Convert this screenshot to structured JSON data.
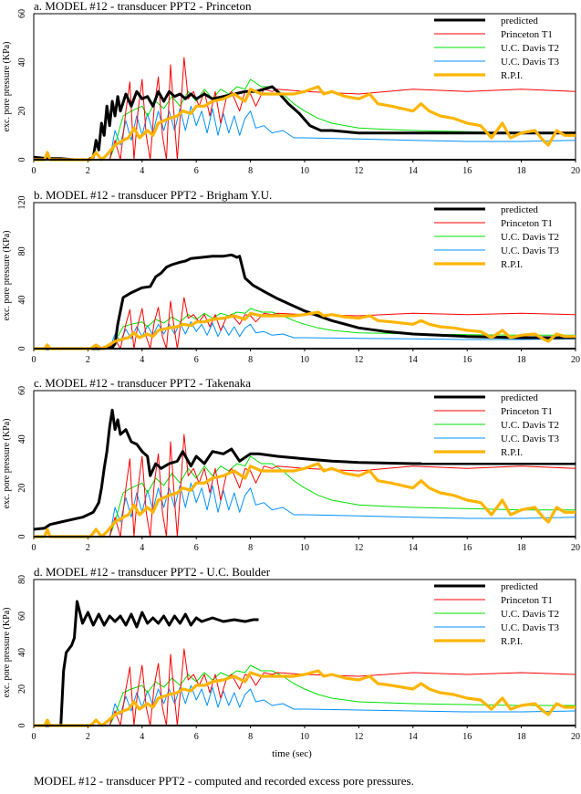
{
  "caption": "MODEL #12 - transducer PPT2 - computed and recorded excess pore pressures.",
  "colors": {
    "predicted": "#000000",
    "Princeton T1": "#ff0000",
    "U.C. Davis T2": "#00e000",
    "U.C. Davis T3": "#0090ff",
    "R.P.I.": "#ffb400"
  },
  "chart_data": [
    {
      "type": "line",
      "title": "a. MODEL #12 - transducer PPT2 - Princeton",
      "xlabel": "",
      "ylabel": "exc. pore pressure (KPa)",
      "xlim": [
        0,
        20
      ],
      "ylim": [
        0,
        60
      ],
      "xticks": [
        0,
        2,
        4,
        6,
        8,
        10,
        12,
        14,
        16,
        18,
        20
      ],
      "yticks": [
        0,
        20,
        40,
        60
      ],
      "legend": "top-right",
      "predicted": [
        [
          0,
          1
        ],
        [
          0.5,
          0.5
        ],
        [
          1,
          0.5
        ],
        [
          1.5,
          0
        ],
        [
          2.0,
          0
        ],
        [
          2.2,
          1
        ],
        [
          2.3,
          8
        ],
        [
          2.4,
          4
        ],
        [
          2.5,
          15
        ],
        [
          2.6,
          10
        ],
        [
          2.7,
          22
        ],
        [
          2.8,
          14
        ],
        [
          2.9,
          24
        ],
        [
          3.0,
          18
        ],
        [
          3.1,
          26
        ],
        [
          3.2,
          20
        ],
        [
          3.4,
          27
        ],
        [
          3.6,
          22
        ],
        [
          3.8,
          28
        ],
        [
          4.0,
          25
        ],
        [
          4.2,
          26
        ],
        [
          4.4,
          22
        ],
        [
          4.6,
          28
        ],
        [
          4.8,
          24
        ],
        [
          5.0,
          28
        ],
        [
          5.2,
          26
        ],
        [
          5.4,
          27
        ],
        [
          5.6,
          25
        ],
        [
          5.8,
          27
        ],
        [
          6.0,
          25
        ],
        [
          6.3,
          27
        ],
        [
          6.6,
          25
        ],
        [
          7.0,
          26
        ],
        [
          7.4,
          27
        ],
        [
          7.8,
          28
        ],
        [
          8.2,
          28
        ],
        [
          8.8,
          30
        ],
        [
          9.0,
          28
        ],
        [
          9.4,
          23
        ],
        [
          9.8,
          19
        ],
        [
          10.2,
          14
        ],
        [
          10.6,
          12
        ],
        [
          11,
          12
        ],
        [
          12,
          11
        ],
        [
          14,
          11
        ],
        [
          16,
          11
        ],
        [
          18,
          11
        ],
        [
          20,
          11
        ]
      ]
    },
    {
      "type": "line",
      "title": "b. MODEL #12 - transducer PPT2 - Brigham Y.U.",
      "xlabel": "",
      "ylabel": "exc. pore pressure (KPa)",
      "xlim": [
        0,
        20
      ],
      "ylim": [
        0,
        120
      ],
      "xticks": [
        0,
        2,
        4,
        6,
        8,
        10,
        12,
        14,
        16,
        18,
        20
      ],
      "yticks": [
        0,
        40,
        80,
        120
      ],
      "legend": "top-right",
      "predicted": [
        [
          0,
          0
        ],
        [
          2.5,
          0
        ],
        [
          2.9,
          1
        ],
        [
          3.0,
          4
        ],
        [
          3.1,
          20
        ],
        [
          3.3,
          42
        ],
        [
          3.6,
          46
        ],
        [
          4.0,
          50
        ],
        [
          4.3,
          51
        ],
        [
          4.4,
          55
        ],
        [
          4.5,
          59
        ],
        [
          4.7,
          62
        ],
        [
          4.9,
          67
        ],
        [
          5.1,
          69
        ],
        [
          5.4,
          71
        ],
        [
          5.6,
          72
        ],
        [
          5.8,
          74
        ],
        [
          6.2,
          75
        ],
        [
          6.6,
          76
        ],
        [
          7.0,
          76
        ],
        [
          7.3,
          77
        ],
        [
          7.5,
          75
        ],
        [
          7.6,
          76
        ],
        [
          7.8,
          58
        ],
        [
          8.1,
          52
        ],
        [
          8.5,
          47
        ],
        [
          9.0,
          41
        ],
        [
          9.5,
          36
        ],
        [
          10,
          31
        ],
        [
          11,
          23
        ],
        [
          12,
          17
        ],
        [
          13,
          14
        ],
        [
          14,
          12
        ],
        [
          16,
          10
        ],
        [
          18,
          9
        ],
        [
          20,
          9
        ]
      ]
    },
    {
      "type": "line",
      "title": "c. MODEL #12 - transducer PPT2 - Takenaka",
      "xlabel": "",
      "ylabel": "exc. pore pressure (KPa)",
      "xlim": [
        0,
        20
      ],
      "ylim": [
        0,
        60
      ],
      "xticks": [
        0,
        2,
        4,
        6,
        8,
        10,
        12,
        14,
        16,
        18,
        20
      ],
      "yticks": [
        0,
        20,
        40,
        60
      ],
      "legend": "top-right",
      "predicted": [
        [
          0,
          3
        ],
        [
          0.4,
          3.5
        ],
        [
          0.6,
          5
        ],
        [
          1.0,
          6
        ],
        [
          1.4,
          7
        ],
        [
          1.8,
          8
        ],
        [
          2.0,
          9
        ],
        [
          2.2,
          10
        ],
        [
          2.4,
          14
        ],
        [
          2.5,
          20
        ],
        [
          2.6,
          28
        ],
        [
          2.7,
          35
        ],
        [
          2.8,
          45
        ],
        [
          2.9,
          52
        ],
        [
          3.0,
          44
        ],
        [
          3.1,
          48
        ],
        [
          3.2,
          42
        ],
        [
          3.4,
          44
        ],
        [
          3.6,
          39
        ],
        [
          3.8,
          38
        ],
        [
          4.0,
          35
        ],
        [
          4.2,
          33
        ],
        [
          4.3,
          25
        ],
        [
          4.5,
          30
        ],
        [
          4.7,
          28
        ],
        [
          5.0,
          30
        ],
        [
          5.3,
          31
        ],
        [
          5.5,
          35
        ],
        [
          5.8,
          29
        ],
        [
          6.0,
          33
        ],
        [
          6.3,
          30
        ],
        [
          6.6,
          35
        ],
        [
          7.0,
          34
        ],
        [
          7.3,
          36
        ],
        [
          7.6,
          31
        ],
        [
          8.0,
          34
        ],
        [
          8.3,
          34
        ],
        [
          9.0,
          33
        ],
        [
          10,
          32
        ],
        [
          11,
          31
        ],
        [
          12,
          30.5
        ],
        [
          14,
          30
        ],
        [
          16,
          30
        ],
        [
          18,
          30
        ],
        [
          20,
          30
        ]
      ]
    },
    {
      "type": "line",
      "title": "d. MODEL #12 - transducer PPT2 - U.C. Boulder",
      "xlabel": "time (sec)",
      "ylabel": "exc. pore pressure (KPa)",
      "xlim": [
        0,
        20
      ],
      "ylim": [
        0,
        80
      ],
      "xticks": [
        0,
        2,
        4,
        6,
        8,
        10,
        12,
        14,
        16,
        18,
        20
      ],
      "yticks": [
        0,
        20,
        40,
        60,
        80
      ],
      "legend": "top-right",
      "predicted": [
        [
          0,
          0
        ],
        [
          0.9,
          0
        ],
        [
          1.0,
          0
        ],
        [
          1.1,
          30
        ],
        [
          1.2,
          40
        ],
        [
          1.4,
          44
        ],
        [
          1.5,
          48
        ],
        [
          1.6,
          68
        ],
        [
          1.8,
          56
        ],
        [
          2.0,
          62
        ],
        [
          2.2,
          55
        ],
        [
          2.4,
          61
        ],
        [
          2.6,
          55
        ],
        [
          2.8,
          60
        ],
        [
          3.0,
          57
        ],
        [
          3.2,
          60
        ],
        [
          3.4,
          55
        ],
        [
          3.6,
          61
        ],
        [
          3.8,
          54
        ],
        [
          4.0,
          62
        ],
        [
          4.2,
          56
        ],
        [
          4.4,
          59
        ],
        [
          4.6,
          56
        ],
        [
          4.8,
          60
        ],
        [
          5.0,
          55
        ],
        [
          5.2,
          60
        ],
        [
          5.4,
          56
        ],
        [
          5.6,
          61
        ],
        [
          5.8,
          55
        ],
        [
          6.0,
          59
        ],
        [
          6.2,
          57
        ],
        [
          6.6,
          59
        ],
        [
          7.0,
          57
        ],
        [
          7.4,
          58
        ],
        [
          7.8,
          57
        ],
        [
          8.1,
          58
        ],
        [
          8.3,
          58
        ]
      ]
    }
  ],
  "recorded": {
    "Princeton T1": [
      [
        0,
        0
      ],
      [
        2.8,
        0
      ],
      [
        3.0,
        8
      ],
      [
        3.2,
        0
      ],
      [
        3.4,
        20
      ],
      [
        3.55,
        32
      ],
      [
        3.7,
        0
      ],
      [
        3.85,
        20
      ],
      [
        4.0,
        33
      ],
      [
        4.15,
        10
      ],
      [
        4.3,
        0
      ],
      [
        4.45,
        22
      ],
      [
        4.6,
        34
      ],
      [
        4.75,
        10
      ],
      [
        4.9,
        0
      ],
      [
        5.05,
        39
      ],
      [
        5.2,
        15
      ],
      [
        5.3,
        0
      ],
      [
        5.45,
        25
      ],
      [
        5.55,
        42
      ],
      [
        5.7,
        25
      ],
      [
        5.9,
        28
      ],
      [
        6.1,
        22
      ],
      [
        6.3,
        28
      ],
      [
        6.5,
        18
      ],
      [
        6.7,
        28
      ],
      [
        6.9,
        15
      ],
      [
        7.1,
        25
      ],
      [
        7.3,
        28
      ],
      [
        7.6,
        20
      ],
      [
        7.8,
        28
      ],
      [
        8.0,
        27
      ],
      [
        8.2,
        22
      ],
      [
        8.5,
        29
      ],
      [
        8.8,
        28
      ],
      [
        9,
        29
      ],
      [
        10,
        28
      ],
      [
        12,
        27
      ],
      [
        14,
        29
      ],
      [
        16,
        28
      ],
      [
        18,
        29
      ],
      [
        20,
        28
      ]
    ],
    "U.C. Davis T2": [
      [
        0,
        0
      ],
      [
        2.8,
        0
      ],
      [
        3.0,
        6
      ],
      [
        3.3,
        18
      ],
      [
        3.6,
        20
      ],
      [
        4.0,
        22
      ],
      [
        4.2,
        18
      ],
      [
        4.5,
        24
      ],
      [
        4.8,
        21
      ],
      [
        5.1,
        26
      ],
      [
        5.4,
        22
      ],
      [
        5.7,
        28
      ],
      [
        6.0,
        24
      ],
      [
        6.3,
        29
      ],
      [
        6.6,
        25
      ],
      [
        6.9,
        29
      ],
      [
        7.2,
        27
      ],
      [
        7.5,
        30
      ],
      [
        7.8,
        29
      ],
      [
        8.0,
        33
      ],
      [
        8.4,
        30
      ],
      [
        8.8,
        30
      ],
      [
        9.2,
        27
      ],
      [
        9.6,
        23
      ],
      [
        10,
        20
      ],
      [
        10.5,
        17
      ],
      [
        11,
        15
      ],
      [
        12,
        13
      ],
      [
        13,
        12.5
      ],
      [
        14,
        12
      ],
      [
        16,
        11.5
      ],
      [
        18,
        11
      ],
      [
        20,
        11
      ]
    ],
    "U.C. Davis T3": [
      [
        0,
        0
      ],
      [
        2.8,
        0
      ],
      [
        3.0,
        12
      ],
      [
        3.2,
        6
      ],
      [
        3.4,
        16
      ],
      [
        3.6,
        8
      ],
      [
        3.8,
        18
      ],
      [
        4.0,
        10
      ],
      [
        4.2,
        19
      ],
      [
        4.4,
        11
      ],
      [
        4.6,
        20
      ],
      [
        4.8,
        12
      ],
      [
        5.0,
        20
      ],
      [
        5.2,
        12
      ],
      [
        5.4,
        21
      ],
      [
        5.6,
        12
      ],
      [
        5.8,
        22
      ],
      [
        6.0,
        14
      ],
      [
        6.2,
        20
      ],
      [
        6.4,
        11
      ],
      [
        6.6,
        21
      ],
      [
        6.8,
        10
      ],
      [
        7.0,
        19
      ],
      [
        7.2,
        11
      ],
      [
        7.4,
        18
      ],
      [
        7.6,
        10
      ],
      [
        7.8,
        17
      ],
      [
        8.0,
        20
      ],
      [
        8.2,
        13
      ],
      [
        8.5,
        14
      ],
      [
        8.8,
        11
      ],
      [
        9.2,
        12
      ],
      [
        9.6,
        9
      ],
      [
        10,
        9
      ],
      [
        12,
        8.5
      ],
      [
        14,
        8
      ],
      [
        16,
        7.5
      ],
      [
        18,
        7.5
      ],
      [
        20,
        8
      ]
    ],
    "R.P.I.": [
      [
        0,
        0
      ],
      [
        0.4,
        0
      ],
      [
        0.5,
        3
      ],
      [
        0.6,
        0
      ],
      [
        2.1,
        0
      ],
      [
        2.3,
        3
      ],
      [
        2.5,
        0
      ],
      [
        2.7,
        2
      ],
      [
        3.0,
        6
      ],
      [
        3.3,
        8
      ],
      [
        3.5,
        9
      ],
      [
        3.7,
        13
      ],
      [
        3.9,
        9
      ],
      [
        4.2,
        12
      ],
      [
        4.4,
        10
      ],
      [
        4.6,
        15
      ],
      [
        5.0,
        17
      ],
      [
        5.3,
        18
      ],
      [
        5.5,
        20
      ],
      [
        5.8,
        19
      ],
      [
        6.0,
        22
      ],
      [
        6.3,
        22
      ],
      [
        6.6,
        24
      ],
      [
        7.0,
        25
      ],
      [
        7.4,
        27
      ],
      [
        7.8,
        24
      ],
      [
        8.0,
        29
      ],
      [
        8.4,
        27
      ],
      [
        9.0,
        27
      ],
      [
        9.6,
        27
      ],
      [
        10,
        28
      ],
      [
        10.5,
        30
      ],
      [
        10.7,
        27
      ],
      [
        11,
        28
      ],
      [
        11.5,
        26
      ],
      [
        12,
        25
      ],
      [
        12.4,
        27
      ],
      [
        12.7,
        23
      ],
      [
        13.2,
        22
      ],
      [
        14,
        20
      ],
      [
        14.3,
        23
      ],
      [
        14.6,
        20
      ],
      [
        15,
        18
      ],
      [
        15.5,
        17
      ],
      [
        16,
        15
      ],
      [
        16.5,
        14
      ],
      [
        16.9,
        9
      ],
      [
        17.3,
        15
      ],
      [
        17.6,
        9
      ],
      [
        18,
        11
      ],
      [
        18.5,
        12
      ],
      [
        18.8,
        8
      ],
      [
        19.0,
        6
      ],
      [
        19.3,
        12
      ],
      [
        19.6,
        10
      ],
      [
        20,
        10
      ]
    ]
  },
  "legend_labels": [
    "predicted",
    "Princeton T1",
    "U.C. Davis T2",
    "U.C. Davis T3",
    "R.P.I."
  ]
}
